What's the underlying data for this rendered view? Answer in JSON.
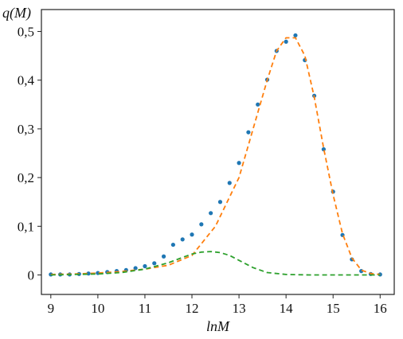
{
  "chart_data": {
    "type": "line",
    "title": "",
    "xlabel": "lnM",
    "ylabel": "q(M)",
    "xlim": [
      8.8,
      16.3
    ],
    "ylim": [
      -0.04,
      0.545
    ],
    "xticks": [
      9,
      10,
      11,
      12,
      13,
      14,
      15,
      16
    ],
    "xtick_labels": [
      "9",
      "10",
      "11",
      "12",
      "13",
      "14",
      "15",
      "16"
    ],
    "yticks": [
      0,
      0.1,
      0.2,
      0.3,
      0.4,
      0.5
    ],
    "ytick_labels": [
      "0",
      "0,1",
      "0,2",
      "0,3",
      "0,4",
      "0,5"
    ],
    "grid": false,
    "legend": "none",
    "series": [
      {
        "style": "dots",
        "color": "#1f77b4",
        "x": [
          9.0,
          9.2,
          9.4,
          9.6,
          9.8,
          10.0,
          10.2,
          10.4,
          10.6,
          10.8,
          11.0,
          11.2,
          11.4,
          11.6,
          11.8,
          12.0,
          12.2,
          12.4,
          12.6,
          12.8,
          13.0,
          13.2,
          13.4,
          13.6,
          13.8,
          14.0,
          14.2,
          14.4,
          14.6,
          14.8,
          15.0,
          15.2,
          15.4,
          15.6,
          15.8,
          16.0
        ],
        "y": [
          0.001,
          0.001,
          0.001,
          0.002,
          0.003,
          0.004,
          0.006,
          0.008,
          0.01,
          0.014,
          0.018,
          0.024,
          0.038,
          0.062,
          0.073,
          0.083,
          0.104,
          0.127,
          0.15,
          0.189,
          0.23,
          0.293,
          0.35,
          0.401,
          0.46,
          0.479,
          0.492,
          0.441,
          0.368,
          0.258,
          0.171,
          0.082,
          0.032,
          0.008,
          0.002,
          0.001
        ]
      },
      {
        "style": "dashed",
        "color": "#ff7f0e",
        "x": [
          9.0,
          9.5,
          10.0,
          10.5,
          11.0,
          11.5,
          12.0,
          12.5,
          13.0,
          13.3,
          13.6,
          13.8,
          14.0,
          14.2,
          14.4,
          14.6,
          14.8,
          15.0,
          15.2,
          15.4,
          15.6,
          15.8,
          16.0
        ],
        "y": [
          0.001,
          0.002,
          0.004,
          0.007,
          0.012,
          0.02,
          0.04,
          0.1,
          0.2,
          0.3,
          0.4,
          0.46,
          0.487,
          0.487,
          0.45,
          0.365,
          0.26,
          0.165,
          0.085,
          0.035,
          0.01,
          0.003,
          0.001
        ]
      },
      {
        "style": "dashed",
        "color": "#2ca02c",
        "x": [
          9.0,
          9.5,
          10.0,
          10.5,
          11.0,
          11.5,
          11.8,
          12.0,
          12.2,
          12.4,
          12.6,
          12.8,
          13.0,
          13.3,
          13.6,
          14.0,
          14.5,
          15.0,
          15.5,
          16.0
        ],
        "y": [
          0.0,
          0.001,
          0.002,
          0.005,
          0.012,
          0.025,
          0.036,
          0.043,
          0.047,
          0.048,
          0.046,
          0.04,
          0.03,
          0.015,
          0.005,
          0.001,
          0.0,
          0.0,
          0.0,
          0.0
        ]
      }
    ]
  }
}
